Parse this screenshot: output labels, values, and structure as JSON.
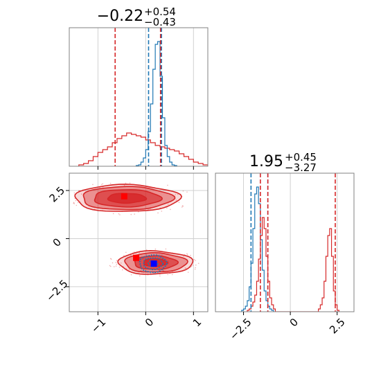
{
  "chart_data": [
    {
      "panel": "marginal-param1",
      "type": "histogram",
      "title": {
        "main": "−0.22",
        "sup": "+0.54",
        "sub": "−0.43"
      },
      "xlim": [
        -1.6,
        1.3
      ],
      "grid": true,
      "series": [
        {
          "color": "#d62728",
          "bin_edges": [
            -1.4,
            -1.3,
            -1.2,
            -1.1,
            -1.0,
            -0.9,
            -0.8,
            -0.7,
            -0.6,
            -0.5,
            -0.4,
            -0.3,
            -0.2,
            -0.1,
            0.0,
            0.1,
            0.2,
            0.3,
            0.4,
            0.5,
            0.6,
            0.7,
            0.8,
            0.9,
            1.0,
            1.1,
            1.2,
            1.3
          ],
          "counts": [
            0.01,
            0.02,
            0.04,
            0.07,
            0.1,
            0.12,
            0.14,
            0.17,
            0.2,
            0.22,
            0.24,
            0.23,
            0.22,
            0.21,
            0.19,
            0.17,
            0.15,
            0.14,
            0.13,
            0.12,
            0.11,
            0.09,
            0.07,
            0.05,
            0.03,
            0.02,
            0.01
          ],
          "quantiles": [
            -0.64,
            0.32
          ]
        },
        {
          "color": "#1f77b4",
          "bin_edges": [
            -0.2,
            -0.15,
            -0.1,
            -0.05,
            0.0,
            0.05,
            0.1,
            0.15,
            0.2,
            0.25,
            0.3,
            0.35,
            0.4,
            0.45,
            0.5,
            0.55,
            0.6,
            0.65
          ],
          "counts": [
            0.005,
            0.01,
            0.03,
            0.06,
            0.12,
            0.25,
            0.45,
            0.7,
            0.88,
            0.9,
            0.65,
            0.35,
            0.15,
            0.07,
            0.03,
            0.01,
            0.005
          ],
          "quantiles": [
            0.06,
            0.33
          ]
        }
      ],
      "extra_lines": [
        {
          "color": "#d62728",
          "x": 0.31
        }
      ]
    },
    {
      "panel": "joint-param1-param2",
      "type": "contour",
      "xlim": [
        -1.6,
        1.3
      ],
      "ylim": [
        -3.8,
        3.4
      ],
      "xticks": [
        -1,
        0,
        1
      ],
      "yticks": [
        -2.5,
        0.0,
        2.5
      ],
      "grid": true,
      "series": [
        {
          "color": "#d62728",
          "modes": [
            {
              "cx": -0.4,
              "cy": 2.1,
              "rx": [
                0.4,
                0.7,
                0.95,
                1.1
              ],
              "ry": [
                0.25,
                0.45,
                0.6,
                0.7
              ]
            },
            {
              "cx": 0.2,
              "cy": -1.25,
              "rx": [
                0.25,
                0.45,
                0.65,
                0.78
              ],
              "ry": [
                0.2,
                0.35,
                0.5,
                0.6
              ]
            }
          ],
          "markers": [
            {
              "x": -0.45,
              "y": 2.2
            },
            {
              "x": -0.2,
              "y": -1.0
            }
          ]
        },
        {
          "color": "#1f77b4",
          "modes": [
            {
              "cx": 0.15,
              "cy": -1.3,
              "rx": [
                0.1,
                0.2,
                0.28
              ],
              "ry": [
                0.15,
                0.3,
                0.45
              ]
            }
          ],
          "markers": [
            {
              "x": 0.17,
              "y": -1.3
            }
          ]
        }
      ]
    },
    {
      "panel": "marginal-param2",
      "type": "histogram",
      "title": {
        "main": "1.95",
        "sup": "+0.45",
        "sub": "−3.27"
      },
      "xlim": [
        -4.0,
        3.4
      ],
      "xticks": [
        -2.5,
        0.0,
        2.5
      ],
      "grid": true,
      "series": [
        {
          "color": "#1f77b4",
          "bin_edges": [
            -2.6,
            -2.5,
            -2.4,
            -2.3,
            -2.2,
            -2.1,
            -2.0,
            -1.9,
            -1.8,
            -1.7,
            -1.6,
            -1.5,
            -1.4,
            -1.3,
            -1.2,
            -1.1,
            -1.0,
            -0.9
          ],
          "counts": [
            0.01,
            0.02,
            0.04,
            0.08,
            0.18,
            0.35,
            0.6,
            0.85,
            0.9,
            0.78,
            0.52,
            0.3,
            0.15,
            0.08,
            0.04,
            0.02,
            0.01
          ],
          "quantiles": [
            -2.1,
            -1.2
          ]
        },
        {
          "color": "#d62728",
          "bin_edges": [
            -2.3,
            -2.2,
            -2.1,
            -2.0,
            -1.9,
            -1.8,
            -1.7,
            -1.6,
            -1.5,
            -1.4,
            -1.3,
            -1.2,
            -1.1,
            -1.0,
            -0.9,
            -0.8,
            1.5,
            1.6,
            1.7,
            1.8,
            1.9,
            2.0,
            2.1,
            2.2,
            2.3,
            2.4,
            2.5,
            2.6
          ],
          "counts": [
            0.01,
            0.02,
            0.04,
            0.07,
            0.12,
            0.22,
            0.38,
            0.55,
            0.68,
            0.6,
            0.4,
            0.22,
            0.1,
            0.05,
            0.02,
            0.0,
            0.02,
            0.05,
            0.1,
            0.22,
            0.4,
            0.55,
            0.6,
            0.4,
            0.15,
            0.05,
            0.01
          ],
          "quantiles": [
            -1.6,
            -1.2,
            2.4
          ]
        }
      ]
    }
  ]
}
